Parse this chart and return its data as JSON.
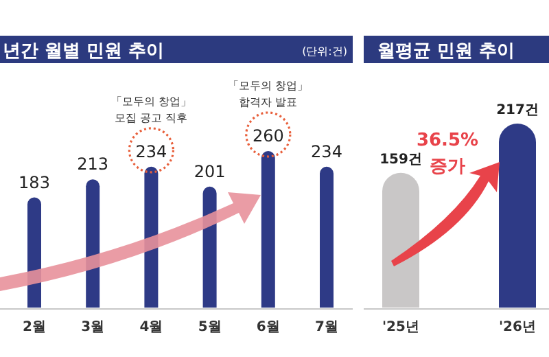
{
  "chart_data": [
    {
      "type": "bar",
      "title": "년간 월별 민원 추이",
      "categories": [
        "2월",
        "3월",
        "4월",
        "5월",
        "6월",
        "7월"
      ],
      "values": [
        183,
        213,
        234,
        201,
        260,
        234
      ],
      "color": "#2e3a86",
      "data_labels": true,
      "annotations": [
        "(단위:건)",
        "「모두의 창업」\n모집 공고 직후",
        "「모두의 창업」\n합격자 발표"
      ]
    },
    {
      "type": "bar",
      "title": "월평균 민원 추이",
      "categories": [
        "'25년",
        "'26년"
      ],
      "values": [
        159,
        217
      ],
      "colors": [
        "#c9c7c7",
        "#2e3a86"
      ],
      "value_labels": [
        "159건",
        "217건"
      ],
      "annotations": [
        "36.5%\n증가"
      ]
    }
  ]
}
